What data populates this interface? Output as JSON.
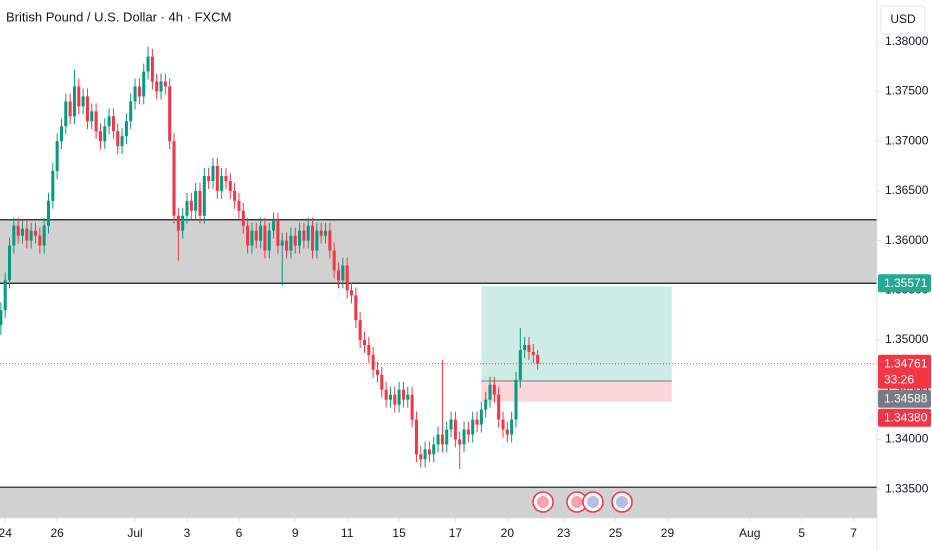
{
  "header": {
    "currency": "USD"
  },
  "chart_data": {
    "type": "candlestick",
    "title": "British Pound / U.S. Dollar · 4h · FXCM",
    "up_color": "#089981",
    "down_color": "#f23645",
    "grid": false,
    "xlim": [
      -1.2,
      201.4
    ],
    "ylim": [
      1.3321,
      1.3842
    ],
    "xticks": [
      {
        "value": 0,
        "label": "24"
      },
      {
        "value": 12,
        "label": "26"
      },
      {
        "value": 30,
        "label": "Jul"
      },
      {
        "value": 42,
        "label": "3"
      },
      {
        "value": 54,
        "label": "6"
      },
      {
        "value": 67,
        "label": "9"
      },
      {
        "value": 79,
        "label": "11"
      },
      {
        "value": 91,
        "label": "15"
      },
      {
        "value": 104,
        "label": "17"
      },
      {
        "value": 116,
        "label": "20"
      },
      {
        "value": 129,
        "label": "23"
      },
      {
        "value": 141,
        "label": "25"
      },
      {
        "value": 153,
        "label": "29"
      },
      {
        "value": 172,
        "label": "Aug"
      },
      {
        "value": 184,
        "label": "5"
      },
      {
        "value": 196,
        "label": "7"
      }
    ],
    "yticks": [
      {
        "value": 1.335,
        "label": "1.33500"
      },
      {
        "value": 1.34,
        "label": "1.34000"
      },
      {
        "value": 1.345,
        "label": "1.34500"
      },
      {
        "value": 1.35,
        "label": "1.35000"
      },
      {
        "value": 1.355,
        "label": "1.35500"
      },
      {
        "value": 1.36,
        "label": "1.36000"
      },
      {
        "value": 1.365,
        "label": "1.36500"
      },
      {
        "value": 1.37,
        "label": "1.37000"
      },
      {
        "value": 1.375,
        "label": "1.37500"
      },
      {
        "value": 1.38,
        "label": "1.38000"
      }
    ],
    "zones": [
      {
        "from": 1.35571,
        "to": 1.3621,
        "color": "#d1d1d1"
      },
      {
        "from": 1.3321,
        "to": 1.3352,
        "color": "#d1d1d1"
      }
    ],
    "position": {
      "x": [
        110,
        154
      ],
      "target": 1.3554
    },
    "price_tags": [
      {
        "value": 1.35571,
        "color": "#22ab94"
      },
      {
        "value": 1.34761,
        "color": "#f23645",
        "countdown": "33:26"
      },
      {
        "value": 1.34588,
        "color": "#787b86"
      },
      {
        "value": 1.3438,
        "label": "1.34380",
        "color": "#f23645"
      }
    ],
    "x": [
      -1,
      0,
      1,
      2,
      3,
      4,
      5,
      6,
      7,
      8,
      9,
      10,
      11,
      12,
      13,
      14,
      15,
      16,
      17,
      18,
      19,
      20,
      21,
      22,
      23,
      24,
      25,
      26,
      27,
      28,
      29,
      30,
      31,
      32,
      33,
      34,
      35,
      36,
      37,
      38,
      39,
      40,
      41,
      42,
      43,
      44,
      45,
      46,
      47,
      48,
      49,
      50,
      51,
      52,
      53,
      54,
      55,
      56,
      57,
      58,
      59,
      60,
      61,
      62,
      63,
      64,
      65,
      66,
      67,
      68,
      69,
      70,
      71,
      72,
      73,
      74,
      75,
      76,
      77,
      78,
      79,
      80,
      81,
      82,
      83,
      84,
      85,
      86,
      87,
      88,
      89,
      90,
      91,
      92,
      93,
      94,
      95,
      96,
      97,
      98,
      99,
      100,
      101,
      102,
      103,
      104,
      105,
      106,
      107,
      108,
      109,
      110,
      111,
      112,
      113,
      114,
      115,
      116,
      117,
      118,
      119,
      120,
      121,
      122,
      123
    ],
    "ohlc": [
      [
        1.3515,
        1.3538,
        1.3505,
        1.353
      ],
      [
        1.353,
        1.3568,
        1.3522,
        1.356
      ],
      [
        1.356,
        1.3603,
        1.3552,
        1.3595
      ],
      [
        1.3595,
        1.3623,
        1.3587,
        1.3615
      ],
      [
        1.3615,
        1.3623,
        1.3597,
        1.3605
      ],
      [
        1.3605,
        1.362,
        1.3597,
        1.3612
      ],
      [
        1.3612,
        1.362,
        1.3592,
        1.36
      ],
      [
        1.36,
        1.3618,
        1.3592,
        1.361
      ],
      [
        1.361,
        1.3618,
        1.3597,
        1.3605
      ],
      [
        1.3605,
        1.3613,
        1.3587,
        1.3595
      ],
      [
        1.3595,
        1.3623,
        1.3587,
        1.3615
      ],
      [
        1.3615,
        1.3648,
        1.3607,
        1.364
      ],
      [
        1.364,
        1.3678,
        1.3632,
        1.367
      ],
      [
        1.367,
        1.3708,
        1.3662,
        1.37
      ],
      [
        1.37,
        1.3723,
        1.3692,
        1.3715
      ],
      [
        1.3715,
        1.3748,
        1.3707,
        1.374
      ],
      [
        1.374,
        1.3748,
        1.3717,
        1.3725
      ],
      [
        1.3725,
        1.3772,
        1.3717,
        1.3755
      ],
      [
        1.3755,
        1.3763,
        1.3727,
        1.3735
      ],
      [
        1.3735,
        1.3753,
        1.3727,
        1.3745
      ],
      [
        1.3745,
        1.3753,
        1.3712,
        1.372
      ],
      [
        1.372,
        1.3738,
        1.3712,
        1.373
      ],
      [
        1.373,
        1.3738,
        1.3702,
        1.371
      ],
      [
        1.371,
        1.3718,
        1.3692,
        1.37
      ],
      [
        1.37,
        1.3723,
        1.3692,
        1.3715
      ],
      [
        1.3715,
        1.3733,
        1.3707,
        1.3725
      ],
      [
        1.3725,
        1.3733,
        1.3702,
        1.371
      ],
      [
        1.371,
        1.3718,
        1.3687,
        1.3695
      ],
      [
        1.3695,
        1.3713,
        1.3687,
        1.3705
      ],
      [
        1.3705,
        1.3728,
        1.3697,
        1.372
      ],
      [
        1.372,
        1.3748,
        1.3712,
        1.374
      ],
      [
        1.374,
        1.3763,
        1.3732,
        1.3755
      ],
      [
        1.3755,
        1.3763,
        1.3737,
        1.3745
      ],
      [
        1.3745,
        1.3778,
        1.3737,
        1.377
      ],
      [
        1.377,
        1.3795,
        1.3762,
        1.3785
      ],
      [
        1.3785,
        1.3793,
        1.3752,
        1.376
      ],
      [
        1.376,
        1.3768,
        1.3742,
        1.375
      ],
      [
        1.375,
        1.3768,
        1.3742,
        1.376
      ],
      [
        1.376,
        1.3768,
        1.3747,
        1.3755
      ],
      [
        1.3755,
        1.3763,
        1.3692,
        1.37
      ],
      [
        1.37,
        1.3708,
        1.3617,
        1.3625
      ],
      [
        1.3625,
        1.3633,
        1.358,
        1.361
      ],
      [
        1.361,
        1.3633,
        1.3602,
        1.3625
      ],
      [
        1.3625,
        1.3648,
        1.3617,
        1.364
      ],
      [
        1.364,
        1.3648,
        1.3622,
        1.363
      ],
      [
        1.363,
        1.3658,
        1.3622,
        1.365
      ],
      [
        1.365,
        1.3658,
        1.3617,
        1.3625
      ],
      [
        1.3625,
        1.3673,
        1.3617,
        1.3665
      ],
      [
        1.3665,
        1.3673,
        1.3652,
        1.366
      ],
      [
        1.366,
        1.3683,
        1.3652,
        1.3675
      ],
      [
        1.3675,
        1.3683,
        1.3642,
        1.365
      ],
      [
        1.365,
        1.3673,
        1.3642,
        1.3665
      ],
      [
        1.3665,
        1.3673,
        1.3652,
        1.366
      ],
      [
        1.366,
        1.3668,
        1.3642,
        1.365
      ],
      [
        1.365,
        1.3658,
        1.3632,
        1.364
      ],
      [
        1.364,
        1.3648,
        1.3622,
        1.363
      ],
      [
        1.363,
        1.3638,
        1.3607,
        1.3615
      ],
      [
        1.3615,
        1.3623,
        1.3587,
        1.3595
      ],
      [
        1.3595,
        1.3618,
        1.3587,
        1.361
      ],
      [
        1.361,
        1.3618,
        1.3592,
        1.36
      ],
      [
        1.36,
        1.3623,
        1.3592,
        1.3615
      ],
      [
        1.3615,
        1.3623,
        1.3582,
        1.359
      ],
      [
        1.359,
        1.3618,
        1.3582,
        1.361
      ],
      [
        1.361,
        1.3628,
        1.3602,
        1.362
      ],
      [
        1.362,
        1.3628,
        1.3587,
        1.3595
      ],
      [
        1.3595,
        1.3608,
        1.3555,
        1.36
      ],
      [
        1.36,
        1.3608,
        1.3582,
        1.359
      ],
      [
        1.359,
        1.3613,
        1.3582,
        1.3605
      ],
      [
        1.3605,
        1.3613,
        1.3587,
        1.3595
      ],
      [
        1.3595,
        1.3618,
        1.3587,
        1.361
      ],
      [
        1.361,
        1.3618,
        1.3592,
        1.36
      ],
      [
        1.36,
        1.3623,
        1.3592,
        1.3615
      ],
      [
        1.3615,
        1.3623,
        1.3582,
        1.359
      ],
      [
        1.359,
        1.3618,
        1.3582,
        1.361
      ],
      [
        1.361,
        1.3618,
        1.3597,
        1.3605
      ],
      [
        1.3605,
        1.3618,
        1.3597,
        1.361
      ],
      [
        1.361,
        1.3618,
        1.3582,
        1.359
      ],
      [
        1.359,
        1.3598,
        1.3562,
        1.357
      ],
      [
        1.357,
        1.3578,
        1.3552,
        1.356
      ],
      [
        1.356,
        1.3583,
        1.3552,
        1.3575
      ],
      [
        1.3575,
        1.3583,
        1.3542,
        1.355
      ],
      [
        1.355,
        1.3558,
        1.3537,
        1.3545
      ],
      [
        1.3545,
        1.3553,
        1.3512,
        1.352
      ],
      [
        1.352,
        1.3528,
        1.3492,
        1.35
      ],
      [
        1.35,
        1.3508,
        1.3487,
        1.3495
      ],
      [
        1.3495,
        1.3503,
        1.3477,
        1.3485
      ],
      [
        1.3485,
        1.3493,
        1.3462,
        1.347
      ],
      [
        1.347,
        1.3478,
        1.3457,
        1.3465
      ],
      [
        1.3465,
        1.3473,
        1.3442,
        1.345
      ],
      [
        1.345,
        1.3458,
        1.3432,
        1.344
      ],
      [
        1.344,
        1.3453,
        1.3432,
        1.3445
      ],
      [
        1.3445,
        1.3453,
        1.3427,
        1.3435
      ],
      [
        1.3435,
        1.3458,
        1.3427,
        1.345
      ],
      [
        1.345,
        1.3458,
        1.3432,
        1.344
      ],
      [
        1.344,
        1.3453,
        1.3432,
        1.3445
      ],
      [
        1.3445,
        1.3453,
        1.3412,
        1.342
      ],
      [
        1.342,
        1.3428,
        1.3377,
        1.3385
      ],
      [
        1.3385,
        1.3393,
        1.3372,
        1.338
      ],
      [
        1.338,
        1.3398,
        1.3372,
        1.339
      ],
      [
        1.339,
        1.3398,
        1.3377,
        1.3385
      ],
      [
        1.3385,
        1.3403,
        1.3377,
        1.3395
      ],
      [
        1.3395,
        1.3413,
        1.3387,
        1.3405
      ],
      [
        1.3405,
        1.348,
        1.3387,
        1.3395
      ],
      [
        1.3395,
        1.3418,
        1.3387,
        1.341
      ],
      [
        1.341,
        1.3428,
        1.3402,
        1.342
      ],
      [
        1.342,
        1.3428,
        1.3392,
        1.34
      ],
      [
        1.34,
        1.3408,
        1.337,
        1.3395
      ],
      [
        1.3395,
        1.3418,
        1.3387,
        1.341
      ],
      [
        1.341,
        1.3418,
        1.3397,
        1.3405
      ],
      [
        1.3405,
        1.3428,
        1.3397,
        1.342
      ],
      [
        1.342,
        1.3428,
        1.3407,
        1.3415
      ],
      [
        1.3415,
        1.3438,
        1.3407,
        1.343
      ],
      [
        1.343,
        1.3448,
        1.3422,
        1.344
      ],
      [
        1.344,
        1.3463,
        1.3432,
        1.3455
      ],
      [
        1.3455,
        1.3463,
        1.3437,
        1.3445
      ],
      [
        1.3445,
        1.3453,
        1.3412,
        1.342
      ],
      [
        1.342,
        1.3428,
        1.3402,
        1.341
      ],
      [
        1.341,
        1.3418,
        1.3397,
        1.3405
      ],
      [
        1.3405,
        1.3428,
        1.3397,
        1.342
      ],
      [
        1.342,
        1.3468,
        1.3412,
        1.346
      ],
      [
        1.346,
        1.3512,
        1.3452,
        1.349
      ],
      [
        1.349,
        1.3503,
        1.3482,
        1.3495
      ],
      [
        1.3495,
        1.3503,
        1.348,
        1.3488
      ],
      [
        1.3488,
        1.3496,
        1.3477,
        1.3485
      ],
      [
        1.3485,
        1.349,
        1.347,
        1.34761
      ]
    ]
  }
}
